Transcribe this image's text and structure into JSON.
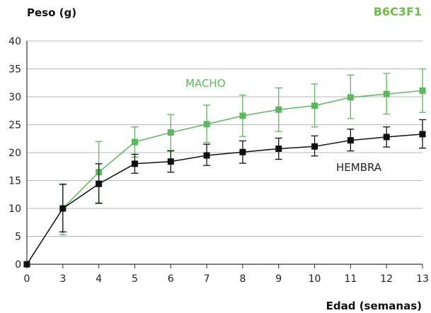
{
  "chart_data": {
    "type": "line",
    "title": "B6C3F1",
    "xlabel": "Edad (semanas)",
    "ylabel": "Peso (g)",
    "x_ticks": [
      "0",
      "3",
      "4",
      "5",
      "6",
      "7",
      "8",
      "9",
      "10",
      "11",
      "12",
      "13"
    ],
    "y_ticks": [
      "0",
      "5",
      "10",
      "15",
      "20",
      "25",
      "30",
      "35",
      "40"
    ],
    "ylim": [
      0,
      40
    ],
    "grid": "horizontal",
    "legend": "inline labels",
    "colors": {
      "title": "#6cbd45",
      "macho": "#5cb85c",
      "hembra": "#111111",
      "grid": "#b8b8b8"
    },
    "series": [
      {
        "name": "MACHO",
        "values": [
          0,
          10.0,
          16.5,
          21.9,
          23.6,
          25.1,
          26.6,
          27.7,
          28.4,
          29.9,
          30.5,
          31.1
        ],
        "err_low": [
          0,
          5.3,
          11.0,
          19.2,
          20.4,
          21.8,
          22.9,
          23.8,
          24.6,
          26.1,
          26.9,
          27.2
        ],
        "err_high": [
          0,
          14.4,
          22.0,
          24.6,
          26.8,
          28.5,
          30.3,
          31.6,
          32.3,
          33.9,
          34.2,
          35.0
        ]
      },
      {
        "name": "HEMBRA",
        "values": [
          0,
          10.0,
          14.4,
          18.0,
          18.4,
          19.5,
          20.1,
          20.7,
          21.1,
          22.2,
          22.8,
          23.3
        ],
        "err_low": [
          0,
          5.8,
          10.9,
          16.3,
          16.5,
          17.7,
          18.1,
          18.8,
          19.4,
          20.3,
          21.0,
          20.8
        ],
        "err_high": [
          0,
          14.3,
          18.0,
          19.7,
          20.3,
          21.5,
          22.1,
          22.6,
          23.0,
          24.2,
          24.6,
          25.9
        ]
      }
    ]
  }
}
